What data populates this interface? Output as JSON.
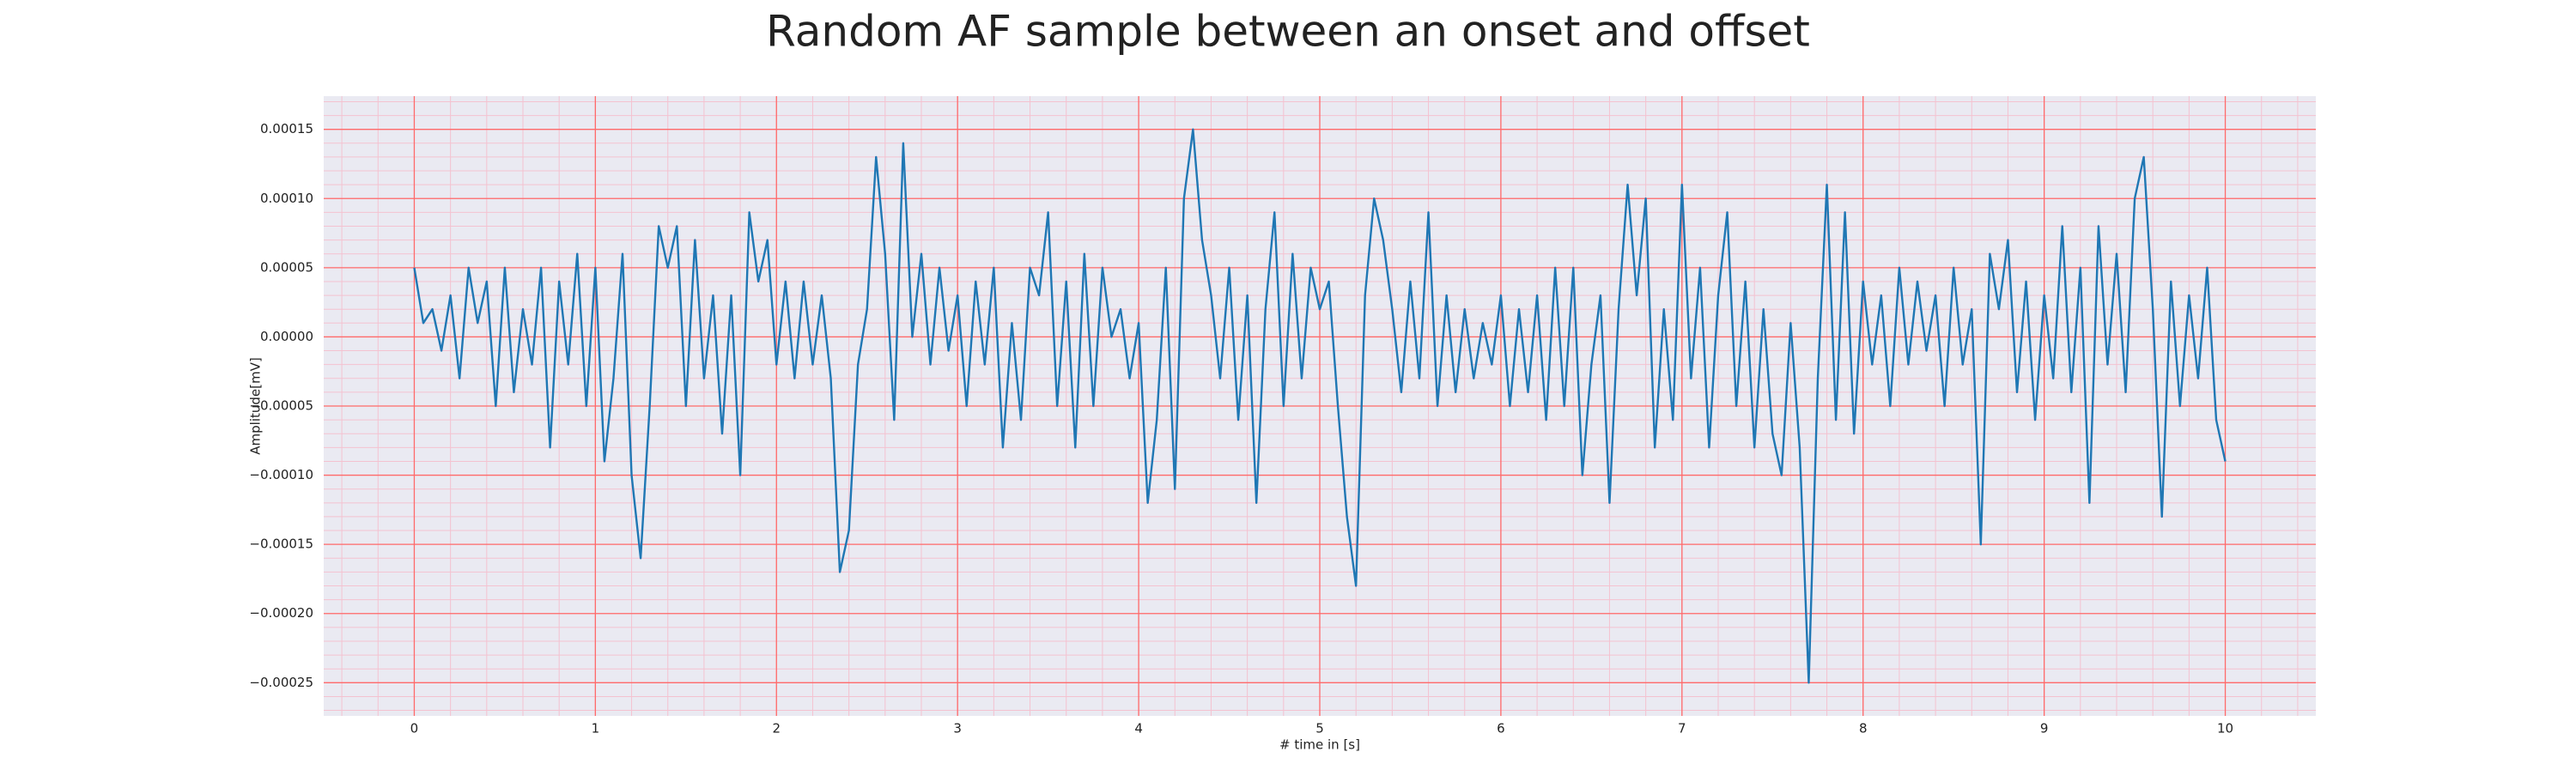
{
  "chart_data": {
    "type": "line",
    "title": "Random AF sample between an onset and offset",
    "xlabel": "# time in [s]",
    "ylabel": "Amplitude[mV]",
    "color": "#1f77b4",
    "grid": true,
    "grid_color": "#ff6a6a",
    "minor_grid": true,
    "minor_grid_color": "#f4c2d0",
    "background": "#eaeaf2",
    "xlim": [
      -0.5,
      10.5
    ],
    "ylim": [
      -0.000274,
      0.000174
    ],
    "xticks": [
      0,
      1,
      2,
      3,
      4,
      5,
      6,
      7,
      8,
      9,
      10
    ],
    "yticks": [
      {
        "value": -0.00025,
        "label": "−0.00025"
      },
      {
        "value": -0.0002,
        "label": "−0.00020"
      },
      {
        "value": -0.00015,
        "label": "−0.00015"
      },
      {
        "value": -0.0001,
        "label": "−0.00010"
      },
      {
        "value": -5e-05,
        "label": "−0.00005"
      },
      {
        "value": 0,
        "label": "0.00000"
      },
      {
        "value": 5e-05,
        "label": "0.00005"
      },
      {
        "value": 0.0001,
        "label": "0.00010"
      },
      {
        "value": 0.00015,
        "label": "0.00015"
      }
    ],
    "x": [
      0,
      0.05,
      0.1,
      0.15,
      0.2,
      0.25,
      0.3,
      0.35,
      0.4,
      0.45,
      0.5,
      0.55,
      0.6,
      0.65,
      0.7,
      0.75,
      0.8,
      0.85,
      0.9,
      0.95,
      1,
      1.05,
      1.1,
      1.15,
      1.2,
      1.25,
      1.3,
      1.35,
      1.4,
      1.45,
      1.5,
      1.55,
      1.6,
      1.65,
      1.7,
      1.75,
      1.8,
      1.85,
      1.9,
      1.95,
      2,
      2.05,
      2.1,
      2.15,
      2.2,
      2.25,
      2.3,
      2.35,
      2.4,
      2.45,
      2.5,
      2.55,
      2.6,
      2.65,
      2.7,
      2.75,
      2.8,
      2.85,
      2.9,
      2.95,
      3,
      3.05,
      3.1,
      3.15,
      3.2,
      3.25,
      3.3,
      3.35,
      3.4,
      3.45,
      3.5,
      3.55,
      3.6,
      3.65,
      3.7,
      3.75,
      3.8,
      3.85,
      3.9,
      3.95,
      4,
      4.05,
      4.1,
      4.15,
      4.2,
      4.25,
      4.3,
      4.35,
      4.4,
      4.45,
      4.5,
      4.55,
      4.6,
      4.65,
      4.7,
      4.75,
      4.8,
      4.85,
      4.9,
      4.95,
      5,
      5.05,
      5.1,
      5.15,
      5.2,
      5.25,
      5.3,
      5.35,
      5.4,
      5.45,
      5.5,
      5.55,
      5.6,
      5.65,
      5.7,
      5.75,
      5.8,
      5.85,
      5.9,
      5.95,
      6,
      6.05,
      6.1,
      6.15,
      6.2,
      6.25,
      6.3,
      6.35,
      6.4,
      6.45,
      6.5,
      6.55,
      6.6,
      6.65,
      6.7,
      6.75,
      6.8,
      6.85,
      6.9,
      6.95,
      7,
      7.05,
      7.1,
      7.15,
      7.2,
      7.25,
      7.3,
      7.35,
      7.4,
      7.45,
      7.5,
      7.55,
      7.6,
      7.65,
      7.7,
      7.75,
      7.8,
      7.85,
      7.9,
      7.95,
      8,
      8.05,
      8.1,
      8.15,
      8.2,
      8.25,
      8.3,
      8.35,
      8.4,
      8.45,
      8.5,
      8.55,
      8.6,
      8.65,
      8.7,
      8.75,
      8.8,
      8.85,
      8.9,
      8.95,
      9,
      9.05,
      9.1,
      9.15,
      9.2,
      9.25,
      9.3,
      9.35,
      9.4,
      9.45,
      9.5,
      9.55,
      9.6,
      9.65,
      9.7,
      9.75,
      9.8,
      9.85,
      9.9,
      9.95,
      10
    ],
    "values": [
      5e-05,
      1e-05,
      2e-05,
      -1e-05,
      3e-05,
      -3e-05,
      5e-05,
      1e-05,
      4e-05,
      -5e-05,
      5e-05,
      -4e-05,
      2e-05,
      -2e-05,
      5e-05,
      -8e-05,
      4e-05,
      -2e-05,
      6e-05,
      -5e-05,
      5e-05,
      -9e-05,
      -3e-05,
      6e-05,
      -0.0001,
      -0.00016,
      -5e-05,
      8e-05,
      5e-05,
      8e-05,
      -5e-05,
      7e-05,
      -3e-05,
      3e-05,
      -7e-05,
      3e-05,
      -0.0001,
      9e-05,
      4e-05,
      7e-05,
      -2e-05,
      4e-05,
      -3e-05,
      4e-05,
      -2e-05,
      3e-05,
      -3e-05,
      -0.00017,
      -0.00014,
      -2e-05,
      2e-05,
      0.00013,
      6e-05,
      -6e-05,
      0.00014,
      0,
      6e-05,
      -2e-05,
      5e-05,
      -1e-05,
      3e-05,
      -5e-05,
      4e-05,
      -2e-05,
      5e-05,
      -8e-05,
      1e-05,
      -6e-05,
      5e-05,
      3e-05,
      9e-05,
      -5e-05,
      4e-05,
      -8e-05,
      6e-05,
      -5e-05,
      5e-05,
      0,
      2e-05,
      -3e-05,
      1e-05,
      -0.00012,
      -6e-05,
      5e-05,
      -0.00011,
      0.0001,
      0.00015,
      7e-05,
      3e-05,
      -3e-05,
      5e-05,
      -6e-05,
      3e-05,
      -0.00012,
      2e-05,
      9e-05,
      -5e-05,
      6e-05,
      -3e-05,
      5e-05,
      2e-05,
      4e-05,
      -5e-05,
      -0.00013,
      -0.00018,
      3e-05,
      0.0001,
      7e-05,
      2e-05,
      -4e-05,
      4e-05,
      -3e-05,
      9e-05,
      -5e-05,
      3e-05,
      -4e-05,
      2e-05,
      -3e-05,
      1e-05,
      -2e-05,
      3e-05,
      -5e-05,
      2e-05,
      -4e-05,
      3e-05,
      -6e-05,
      5e-05,
      -5e-05,
      5e-05,
      -0.0001,
      -2e-05,
      3e-05,
      -0.00012,
      2e-05,
      0.00011,
      3e-05,
      0.0001,
      -8e-05,
      2e-05,
      -6e-05,
      0.00011,
      -3e-05,
      5e-05,
      -8e-05,
      3e-05,
      9e-05,
      -5e-05,
      4e-05,
      -8e-05,
      2e-05,
      -7e-05,
      -0.0001,
      1e-05,
      -8e-05,
      -0.00025,
      -3e-05,
      0.00011,
      -6e-05,
      9e-05,
      -7e-05,
      4e-05,
      -2e-05,
      3e-05,
      -5e-05,
      5e-05,
      -2e-05,
      4e-05,
      -1e-05,
      3e-05,
      -5e-05,
      5e-05,
      -2e-05,
      2e-05,
      -0.00015,
      6e-05,
      2e-05,
      7e-05,
      -4e-05,
      4e-05,
      -6e-05,
      3e-05,
      -3e-05,
      8e-05,
      -4e-05,
      5e-05,
      -0.00012,
      8e-05,
      -2e-05,
      6e-05,
      -4e-05,
      0.0001,
      0.00013,
      2e-05,
      -0.00013,
      4e-05,
      -5e-05,
      3e-05,
      -3e-05,
      5e-05,
      -6e-05,
      -9e-05
    ]
  }
}
